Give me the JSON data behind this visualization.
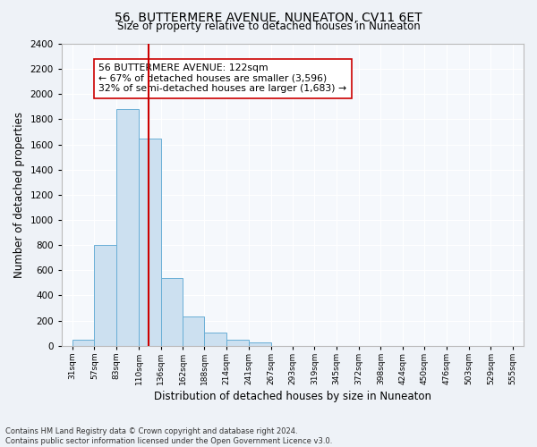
{
  "title": "56, BUTTERMERE AVENUE, NUNEATON, CV11 6ET",
  "subtitle": "Size of property relative to detached houses in Nuneaton",
  "xlabel": "Distribution of detached houses by size in Nuneaton",
  "ylabel": "Number of detached properties",
  "bar_color": "#cce0f0",
  "bar_edge_color": "#6aafd6",
  "bins": [
    31,
    57,
    83,
    110,
    136,
    162,
    188,
    214,
    241,
    267,
    293,
    319,
    345,
    372,
    398,
    424,
    450,
    476,
    503,
    529,
    555
  ],
  "counts": [
    50,
    800,
    1880,
    1650,
    540,
    230,
    105,
    50,
    30,
    0,
    0,
    0,
    0,
    0,
    0,
    0,
    0,
    0,
    0,
    0
  ],
  "tick_labels": [
    "31sqm",
    "57sqm",
    "83sqm",
    "110sqm",
    "136sqm",
    "162sqm",
    "188sqm",
    "214sqm",
    "241sqm",
    "267sqm",
    "293sqm",
    "319sqm",
    "345sqm",
    "372sqm",
    "398sqm",
    "424sqm",
    "450sqm",
    "476sqm",
    "503sqm",
    "529sqm",
    "555sqm"
  ],
  "ylim": [
    0,
    2400
  ],
  "yticks": [
    0,
    200,
    400,
    600,
    800,
    1000,
    1200,
    1400,
    1600,
    1800,
    2000,
    2200,
    2400
  ],
  "vline_color": "#cc0000",
  "annotation_title": "56 BUTTERMERE AVENUE: 122sqm",
  "annotation_line1": "← 67% of detached houses are smaller (3,596)",
  "annotation_line2": "32% of semi-detached houses are larger (1,683) →",
  "annotation_box_color": "#ffffff",
  "annotation_box_edge": "#cc0000",
  "footer1": "Contains HM Land Registry data © Crown copyright and database right 2024.",
  "footer2": "Contains public sector information licensed under the Open Government Licence v3.0.",
  "background_color": "#eef2f7",
  "plot_bg_color": "#f5f8fc"
}
